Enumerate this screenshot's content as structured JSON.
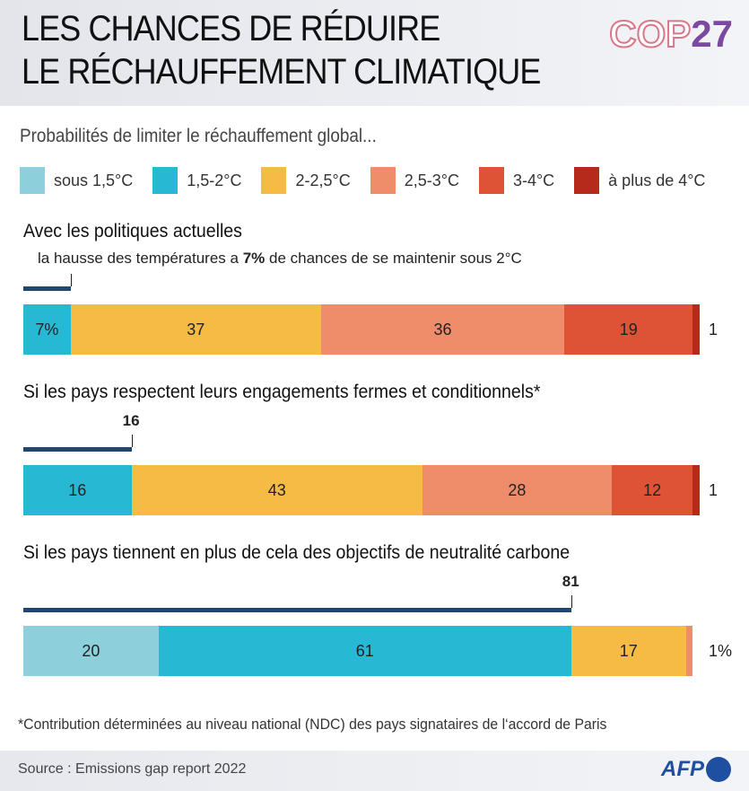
{
  "header": {
    "title_line1": "LES CHANCES DE RÉDUIRE",
    "title_line2": "LE RÉCHAUFFEMENT CLIMATIQUE",
    "logo_cop": "COP",
    "logo_num": "27"
  },
  "subtitle": "Probabilités de limiter le réchauffement global...",
  "footnote": "*Contribution déterminées au niveau national (NDC) des pays signataires de l‘accord de Paris",
  "source": "Source : Emissions gap report 2022",
  "afp_logo": "AFP",
  "chart_data": {
    "type": "bar",
    "stacked": true,
    "orientation": "horizontal",
    "unit": "%",
    "legend": [
      {
        "label": "sous 1,5°C",
        "color": "#8ecfdc"
      },
      {
        "label": "1,5-2°C",
        "color": "#27b9d3"
      },
      {
        "label": "2-2,5°C",
        "color": "#f6bb44"
      },
      {
        "label": "2,5-3°C",
        "color": "#ef8c6a"
      },
      {
        "label": "3-4°C",
        "color": "#de5236"
      },
      {
        "label": "à plus de 4°C",
        "color": "#b52a1b"
      }
    ],
    "scenarios": [
      {
        "title": "Avec les politiques actuelles",
        "note_pre": "la hausse des températures a ",
        "note_bold": "7%",
        "note_post": " de chances de se maintenir sous 2°C",
        "under2": 7,
        "under2_label": "",
        "values": [
          0,
          7,
          37,
          36,
          19,
          1
        ],
        "labels": [
          "",
          "7%",
          "37",
          "36",
          "19",
          ""
        ],
        "end_label": "1"
      },
      {
        "title": "Si les pays respectent leurs engagements fermes et conditionnels*",
        "under2": 16,
        "under2_label": "16",
        "values": [
          0,
          16,
          43,
          28,
          12,
          1
        ],
        "labels": [
          "",
          "16",
          "43",
          "28",
          "12",
          ""
        ],
        "end_label": "1"
      },
      {
        "title": "Si les pays tiennent en plus de cela des objectifs de neutralité carbone",
        "under2": 81,
        "under2_label": "81",
        "values": [
          20,
          61,
          17,
          1,
          0,
          0
        ],
        "labels": [
          "20",
          "61",
          "17",
          "",
          "",
          ""
        ],
        "end_label": "1%"
      }
    ]
  }
}
